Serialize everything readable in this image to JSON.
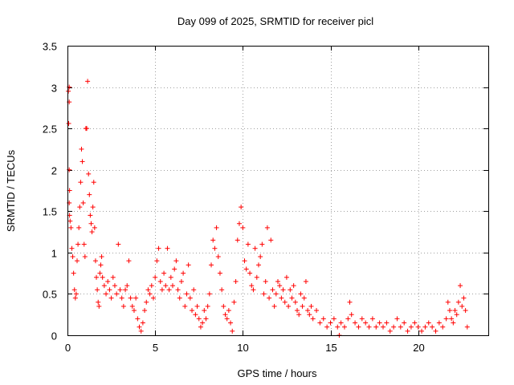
{
  "chart_data": {
    "type": "scatter",
    "title": "Day 099 of 2025, SRMTID for receiver picl",
    "xlabel": "GPS time / hours",
    "ylabel": "SRMTID / TECUs",
    "xlim": [
      0,
      24
    ],
    "ylim": [
      0,
      3.5
    ],
    "xticks": [
      0,
      5,
      10,
      15,
      20
    ],
    "xtick_labels": [
      "0",
      "5",
      "10",
      "15",
      "20"
    ],
    "yticks": [
      0,
      0.5,
      1,
      1.5,
      2,
      2.5,
      3,
      3.5
    ],
    "ytick_labels": [
      "0",
      "0.5",
      "1",
      "1.5",
      "2",
      "2.5",
      "3",
      "3.5"
    ],
    "grid": true,
    "marker": "+",
    "color": "#ff0000",
    "series": [
      {
        "name": "SRMTID",
        "points": [
          [
            0.05,
            2.95
          ],
          [
            0.1,
            3.0
          ],
          [
            0.1,
            2.82
          ],
          [
            0.07,
            2.56
          ],
          [
            0.1,
            2.0
          ],
          [
            0.12,
            1.75
          ],
          [
            0.1,
            1.6
          ],
          [
            0.12,
            1.45
          ],
          [
            0.15,
            1.38
          ],
          [
            0.2,
            1.3
          ],
          [
            0.25,
            1.05
          ],
          [
            0.3,
            0.95
          ],
          [
            0.35,
            0.75
          ],
          [
            0.4,
            0.55
          ],
          [
            0.45,
            0.45
          ],
          [
            0.5,
            0.5
          ],
          [
            0.55,
            0.9
          ],
          [
            0.6,
            1.1
          ],
          [
            0.65,
            1.3
          ],
          [
            0.7,
            1.55
          ],
          [
            0.75,
            1.85
          ],
          [
            0.8,
            2.25
          ],
          [
            0.85,
            2.1
          ],
          [
            0.9,
            1.6
          ],
          [
            0.95,
            1.1
          ],
          [
            1.0,
            0.95
          ],
          [
            1.05,
            2.5
          ],
          [
            1.1,
            2.5
          ],
          [
            1.15,
            3.07
          ],
          [
            1.2,
            1.95
          ],
          [
            1.25,
            1.7
          ],
          [
            1.3,
            1.45
          ],
          [
            1.35,
            1.35
          ],
          [
            1.4,
            1.25
          ],
          [
            1.45,
            1.55
          ],
          [
            1.5,
            1.85
          ],
          [
            1.55,
            1.3
          ],
          [
            1.6,
            0.9
          ],
          [
            1.65,
            0.7
          ],
          [
            1.7,
            0.55
          ],
          [
            1.75,
            0.4
          ],
          [
            1.8,
            0.35
          ],
          [
            1.85,
            0.75
          ],
          [
            1.9,
            0.85
          ],
          [
            1.95,
            0.95
          ],
          [
            2.0,
            0.7
          ],
          [
            2.1,
            0.6
          ],
          [
            2.2,
            0.5
          ],
          [
            2.3,
            0.65
          ],
          [
            2.4,
            0.55
          ],
          [
            2.5,
            0.45
          ],
          [
            2.6,
            0.7
          ],
          [
            2.7,
            0.6
          ],
          [
            2.8,
            0.5
          ],
          [
            2.9,
            1.1
          ],
          [
            3.0,
            0.55
          ],
          [
            3.1,
            0.45
          ],
          [
            3.2,
            0.35
          ],
          [
            3.3,
            0.55
          ],
          [
            3.4,
            0.6
          ],
          [
            3.5,
            0.9
          ],
          [
            3.6,
            0.45
          ],
          [
            3.7,
            0.35
          ],
          [
            3.8,
            0.3
          ],
          [
            3.9,
            0.45
          ],
          [
            4.0,
            0.2
          ],
          [
            4.1,
            0.1
          ],
          [
            4.2,
            0.05
          ],
          [
            4.3,
            0.15
          ],
          [
            4.4,
            0.3
          ],
          [
            4.5,
            0.4
          ],
          [
            4.6,
            0.55
          ],
          [
            4.7,
            0.5
          ],
          [
            4.8,
            0.6
          ],
          [
            4.9,
            0.45
          ],
          [
            5.0,
            0.7
          ],
          [
            5.1,
            0.9
          ],
          [
            5.2,
            1.05
          ],
          [
            5.3,
            0.65
          ],
          [
            5.4,
            0.55
          ],
          [
            5.5,
            0.75
          ],
          [
            5.6,
            0.6
          ],
          [
            5.7,
            1.05
          ],
          [
            5.8,
            0.55
          ],
          [
            5.9,
            0.7
          ],
          [
            6.0,
            0.6
          ],
          [
            6.1,
            0.8
          ],
          [
            6.2,
            0.9
          ],
          [
            6.3,
            0.55
          ],
          [
            6.4,
            0.45
          ],
          [
            6.5,
            0.65
          ],
          [
            6.6,
            0.75
          ],
          [
            6.7,
            0.35
          ],
          [
            6.8,
            0.5
          ],
          [
            6.9,
            0.85
          ],
          [
            7.0,
            0.45
          ],
          [
            7.1,
            0.3
          ],
          [
            7.2,
            0.55
          ],
          [
            7.3,
            0.25
          ],
          [
            7.4,
            0.35
          ],
          [
            7.5,
            0.2
          ],
          [
            7.6,
            0.1
          ],
          [
            7.7,
            0.15
          ],
          [
            7.8,
            0.3
          ],
          [
            7.9,
            0.2
          ],
          [
            8.0,
            0.35
          ],
          [
            8.1,
            0.5
          ],
          [
            8.2,
            0.85
          ],
          [
            8.3,
            1.15
          ],
          [
            8.4,
            1.05
          ],
          [
            8.5,
            1.3
          ],
          [
            8.6,
            0.95
          ],
          [
            8.7,
            0.75
          ],
          [
            8.8,
            0.55
          ],
          [
            8.9,
            0.35
          ],
          [
            9.0,
            0.25
          ],
          [
            9.1,
            0.2
          ],
          [
            9.2,
            0.3
          ],
          [
            9.3,
            0.15
          ],
          [
            9.4,
            0.05
          ],
          [
            9.5,
            0.4
          ],
          [
            9.6,
            0.65
          ],
          [
            9.7,
            1.15
          ],
          [
            9.8,
            1.35
          ],
          [
            9.9,
            1.55
          ],
          [
            10.0,
            1.3
          ],
          [
            10.1,
            0.9
          ],
          [
            10.2,
            0.8
          ],
          [
            10.3,
            1.1
          ],
          [
            10.4,
            0.75
          ],
          [
            10.5,
            0.6
          ],
          [
            10.6,
            0.55
          ],
          [
            10.7,
            1.05
          ],
          [
            10.8,
            0.7
          ],
          [
            10.9,
            0.85
          ],
          [
            11.0,
            0.95
          ],
          [
            11.1,
            1.1
          ],
          [
            11.2,
            0.5
          ],
          [
            11.3,
            0.65
          ],
          [
            11.4,
            1.3
          ],
          [
            11.5,
            0.45
          ],
          [
            11.6,
            1.15
          ],
          [
            11.7,
            0.55
          ],
          [
            11.8,
            0.35
          ],
          [
            11.9,
            0.5
          ],
          [
            12.0,
            0.65
          ],
          [
            12.1,
            0.6
          ],
          [
            12.2,
            0.45
          ],
          [
            12.3,
            0.55
          ],
          [
            12.4,
            0.4
          ],
          [
            12.5,
            0.7
          ],
          [
            12.6,
            0.35
          ],
          [
            12.7,
            0.55
          ],
          [
            12.8,
            0.45
          ],
          [
            12.9,
            0.6
          ],
          [
            13.0,
            0.4
          ],
          [
            13.1,
            0.3
          ],
          [
            13.2,
            0.25
          ],
          [
            13.3,
            0.5
          ],
          [
            13.4,
            0.35
          ],
          [
            13.5,
            0.45
          ],
          [
            13.6,
            0.65
          ],
          [
            13.7,
            0.3
          ],
          [
            13.8,
            0.25
          ],
          [
            13.9,
            0.35
          ],
          [
            14.0,
            0.2
          ],
          [
            14.2,
            0.3
          ],
          [
            14.4,
            0.15
          ],
          [
            14.6,
            0.2
          ],
          [
            14.8,
            0.1
          ],
          [
            15.0,
            0.15
          ],
          [
            15.2,
            0.2
          ],
          [
            15.4,
            0.1
          ],
          [
            15.5,
            0.0
          ],
          [
            15.6,
            0.15
          ],
          [
            15.8,
            0.1
          ],
          [
            16.0,
            0.2
          ],
          [
            16.1,
            0.4
          ],
          [
            16.2,
            0.25
          ],
          [
            16.4,
            0.15
          ],
          [
            16.6,
            0.1
          ],
          [
            16.8,
            0.2
          ],
          [
            17.0,
            0.15
          ],
          [
            17.2,
            0.1
          ],
          [
            17.4,
            0.2
          ],
          [
            17.6,
            0.1
          ],
          [
            17.8,
            0.15
          ],
          [
            18.0,
            0.1
          ],
          [
            18.2,
            0.15
          ],
          [
            18.4,
            0.05
          ],
          [
            18.6,
            0.1
          ],
          [
            18.8,
            0.2
          ],
          [
            19.0,
            0.1
          ],
          [
            19.2,
            0.15
          ],
          [
            19.4,
            0.05
          ],
          [
            19.6,
            0.1
          ],
          [
            19.8,
            0.15
          ],
          [
            20.0,
            0.1
          ],
          [
            20.2,
            0.05
          ],
          [
            20.4,
            0.1
          ],
          [
            20.6,
            0.15
          ],
          [
            20.8,
            0.1
          ],
          [
            21.0,
            0.05
          ],
          [
            21.2,
            0.15
          ],
          [
            21.4,
            0.1
          ],
          [
            21.6,
            0.2
          ],
          [
            21.7,
            0.4
          ],
          [
            21.8,
            0.3
          ],
          [
            21.9,
            0.2
          ],
          [
            22.0,
            0.15
          ],
          [
            22.1,
            0.3
          ],
          [
            22.2,
            0.25
          ],
          [
            22.3,
            0.4
          ],
          [
            22.4,
            0.6
          ],
          [
            22.5,
            0.35
          ],
          [
            22.6,
            0.45
          ],
          [
            22.7,
            0.3
          ],
          [
            22.8,
            0.1
          ]
        ]
      }
    ]
  }
}
